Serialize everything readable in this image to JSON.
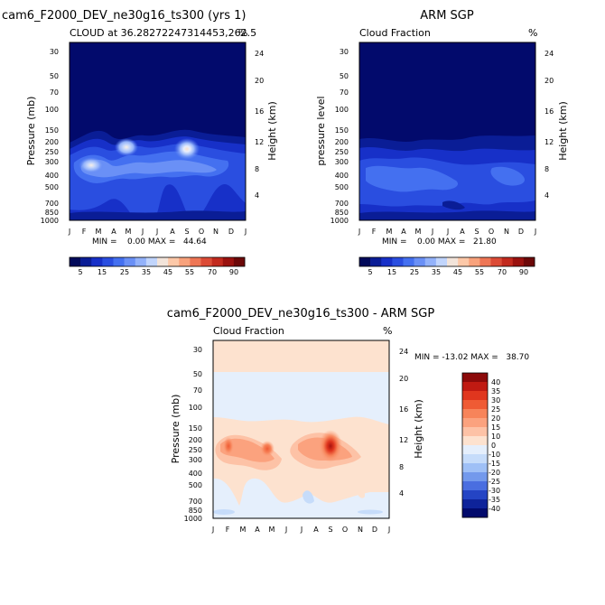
{
  "chart_data": [
    {
      "id": "model",
      "type": "heatmap",
      "title": "cam6_F2000_DEV_ne30g16_ts300 (yrs 1)",
      "subtitle": "CLOUD at 36.28272247314453,262.5",
      "units": "%",
      "xlabel": "",
      "ylabel": "Pressure (mb)",
      "y2label": "Height (km)",
      "x": [
        "J",
        "F",
        "M",
        "A",
        "M",
        "J",
        "J",
        "A",
        "S",
        "O",
        "N",
        "D",
        "J"
      ],
      "yticks": [
        "30",
        "50",
        "70",
        "100",
        "150",
        "200",
        "250",
        "300",
        "400",
        "500",
        "700",
        "850",
        "1000"
      ],
      "y2ticks": [
        "24",
        "20",
        "16",
        "12",
        "8",
        "4"
      ],
      "minmax_label": "MIN =    0.00 MAX =   44.64",
      "min": 0.0,
      "max": 44.64
    },
    {
      "id": "obs",
      "type": "heatmap",
      "title": "ARM SGP",
      "subtitle": "Cloud Fraction",
      "units": "%",
      "xlabel": "",
      "ylabel": "pressure level",
      "y2label": "Height (km)",
      "x": [
        "J",
        "F",
        "M",
        "A",
        "M",
        "J",
        "J",
        "A",
        "S",
        "O",
        "N",
        "D",
        "J"
      ],
      "yticks": [
        "30",
        "50",
        "70",
        "100",
        "150",
        "200",
        "250",
        "300",
        "400",
        "500",
        "700",
        "850",
        "1000"
      ],
      "y2ticks": [
        "24",
        "20",
        "16",
        "12",
        "8",
        "4"
      ],
      "minmax_label": "MIN =    0.00 MAX =   21.80",
      "min": 0.0,
      "max": 21.8
    },
    {
      "id": "diff",
      "type": "heatmap",
      "title": "cam6_F2000_DEV_ne30g16_ts300 - ARM SGP",
      "subtitle": "Cloud Fraction",
      "units": "%",
      "xlabel": "",
      "ylabel": "Pressure (mb)",
      "y2label": "Height (km)",
      "x": [
        "J",
        "F",
        "M",
        "A",
        "M",
        "J",
        "J",
        "A",
        "S",
        "O",
        "N",
        "D",
        "J"
      ],
      "yticks": [
        "30",
        "50",
        "70",
        "100",
        "150",
        "200",
        "250",
        "300",
        "400",
        "500",
        "700",
        "850",
        "1000"
      ],
      "y2ticks": [
        "24",
        "20",
        "16",
        "12",
        "8",
        "4"
      ],
      "minmax_label": "MIN = -13.02 MAX =   38.70",
      "min": -13.02,
      "max": 38.7
    }
  ],
  "colorbars": {
    "absolute": {
      "labels": [
        "5",
        "15",
        "25",
        "35",
        "45",
        "55",
        "70",
        "90"
      ],
      "colors": [
        "#020a5a",
        "#0a1d96",
        "#1730c8",
        "#2a4ee0",
        "#4470f0",
        "#6a90f6",
        "#93b2fa",
        "#c1d5fc",
        "#f2e4da",
        "#fcc8a8",
        "#f8a27c",
        "#ee7655",
        "#dc4b36",
        "#c22a1e",
        "#9a120f",
        "#6c0808"
      ]
    },
    "difference": {
      "labels": [
        "40",
        "35",
        "30",
        "25",
        "20",
        "15",
        "10",
        "0",
        "-10",
        "-15",
        "-20",
        "-25",
        "-30",
        "-35",
        "-40"
      ],
      "colors": [
        "#8c0a0a",
        "#c01a12",
        "#e0361e",
        "#ef5b34",
        "#f7845a",
        "#fba27e",
        "#fdc2a6",
        "#fde2cf",
        "#e5effc",
        "#c6dcfa",
        "#9fc0f6",
        "#7399ec",
        "#4a6ee0",
        "#2444c4",
        "#0e239a",
        "#020a6c"
      ]
    }
  }
}
